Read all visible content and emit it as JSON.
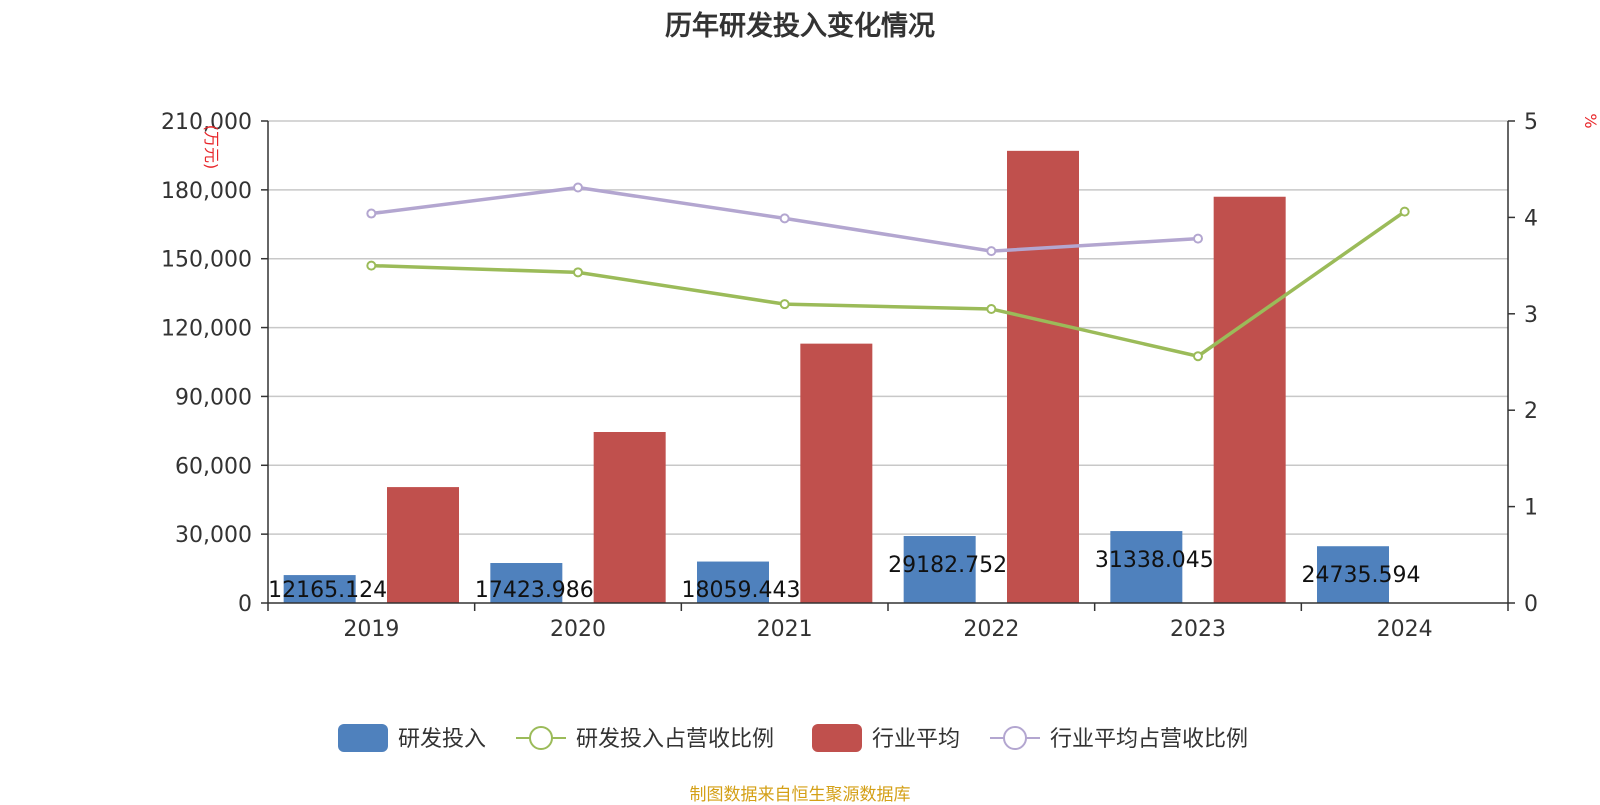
{
  "title": "历年研发投入变化情况",
  "source": "制图数据来自恒生聚源数据库",
  "chart_data": {
    "type": "bar",
    "categories": [
      "2019",
      "2020",
      "2021",
      "2022",
      "2023",
      "2024"
    ],
    "left_axis": {
      "unit": "(万元)",
      "ylim": [
        0,
        210000
      ],
      "ticks": [
        0,
        30000,
        60000,
        90000,
        120000,
        150000,
        180000,
        210000
      ],
      "tick_labels": [
        "0",
        "30,000",
        "60,000",
        "90,000",
        "120,000",
        "150,000",
        "180,000",
        "210,000"
      ]
    },
    "right_axis": {
      "unit": "%",
      "ylim": [
        0,
        5
      ],
      "ticks": [
        0,
        1,
        2,
        3,
        4,
        5
      ],
      "tick_labels": [
        "0",
        "1",
        "2",
        "3",
        "4",
        "5"
      ]
    },
    "series": [
      {
        "name": "研发投入",
        "type": "bar",
        "axis": "left",
        "color": "#4f81bd",
        "values": [
          12165.124,
          17423.986,
          18059.443,
          29182.752,
          31338.045,
          24735.594
        ],
        "labels": [
          "12165.124",
          "17423.986",
          "18059.443",
          "29182.752",
          "31338.045",
          "24735.594"
        ]
      },
      {
        "name": "研发投入占营收比例",
        "type": "line",
        "axis": "right",
        "color": "#9bbb59",
        "values": [
          3.5,
          3.43,
          3.1,
          3.05,
          2.56,
          4.06
        ]
      },
      {
        "name": "行业平均",
        "type": "bar",
        "axis": "left",
        "color": "#c0504d",
        "values": [
          50500,
          74500,
          113000,
          197000,
          177000,
          null
        ]
      },
      {
        "name": "行业平均占营收比例",
        "type": "line",
        "axis": "right",
        "color": "#b3a6d0",
        "values": [
          4.04,
          4.31,
          3.99,
          3.65,
          3.78,
          null
        ]
      }
    ],
    "grid": true,
    "legend_position": "bottom"
  }
}
